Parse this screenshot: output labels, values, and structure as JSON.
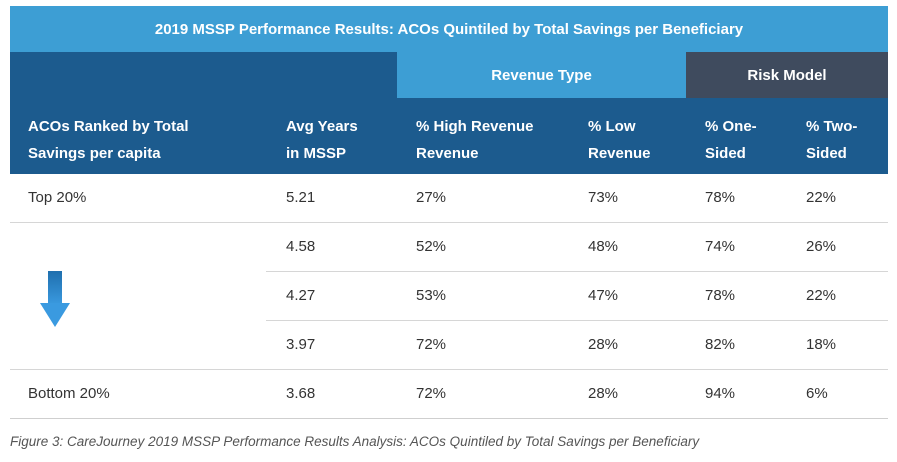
{
  "table": {
    "title": "2019 MSSP Performance Results: ACOs Quintiled by Total Savings per Beneficiary",
    "groups": {
      "revenue_type": "Revenue Type",
      "risk_model": "Risk Model"
    },
    "headers": {
      "rank": [
        "ACOs Ranked by Total",
        "Savings per capita"
      ],
      "years": [
        "Avg Years",
        "in MSSP"
      ],
      "high": [
        "% High Revenue",
        "Revenue"
      ],
      "low": [
        "% Low",
        "Revenue"
      ],
      "one": [
        "% One-",
        "Sided"
      ],
      "two": [
        "% Two-",
        "Sided"
      ]
    },
    "rows": [
      {
        "label": "Top 20%",
        "years": "5.21",
        "high": "27%",
        "low": "73%",
        "one": "78%",
        "two": "22%"
      },
      {
        "label": "",
        "years": "4.58",
        "high": "52%",
        "low": "48%",
        "one": "74%",
        "two": "26%"
      },
      {
        "label": "",
        "years": "4.27",
        "high": "53%",
        "low": "47%",
        "one": "78%",
        "two": "22%"
      },
      {
        "label": "",
        "years": "3.97",
        "high": "72%",
        "low": "28%",
        "one": "82%",
        "two": "18%"
      },
      {
        "label": "Bottom 20%",
        "years": "3.68",
        "high": "72%",
        "low": "28%",
        "one": "94%",
        "two": "6%"
      }
    ],
    "arrow_icon": "down-arrow-icon",
    "colors": {
      "title_bg": "#3d9ed4",
      "header_bg": "#1c5b8e",
      "risk_bg": "#3f4b5e",
      "arrow": "#2f86c6"
    }
  },
  "caption": "Figure 3: CareJourney 2019 MSSP Performance Results Analysis: ACOs Quintiled by Total Savings per Beneficiary"
}
